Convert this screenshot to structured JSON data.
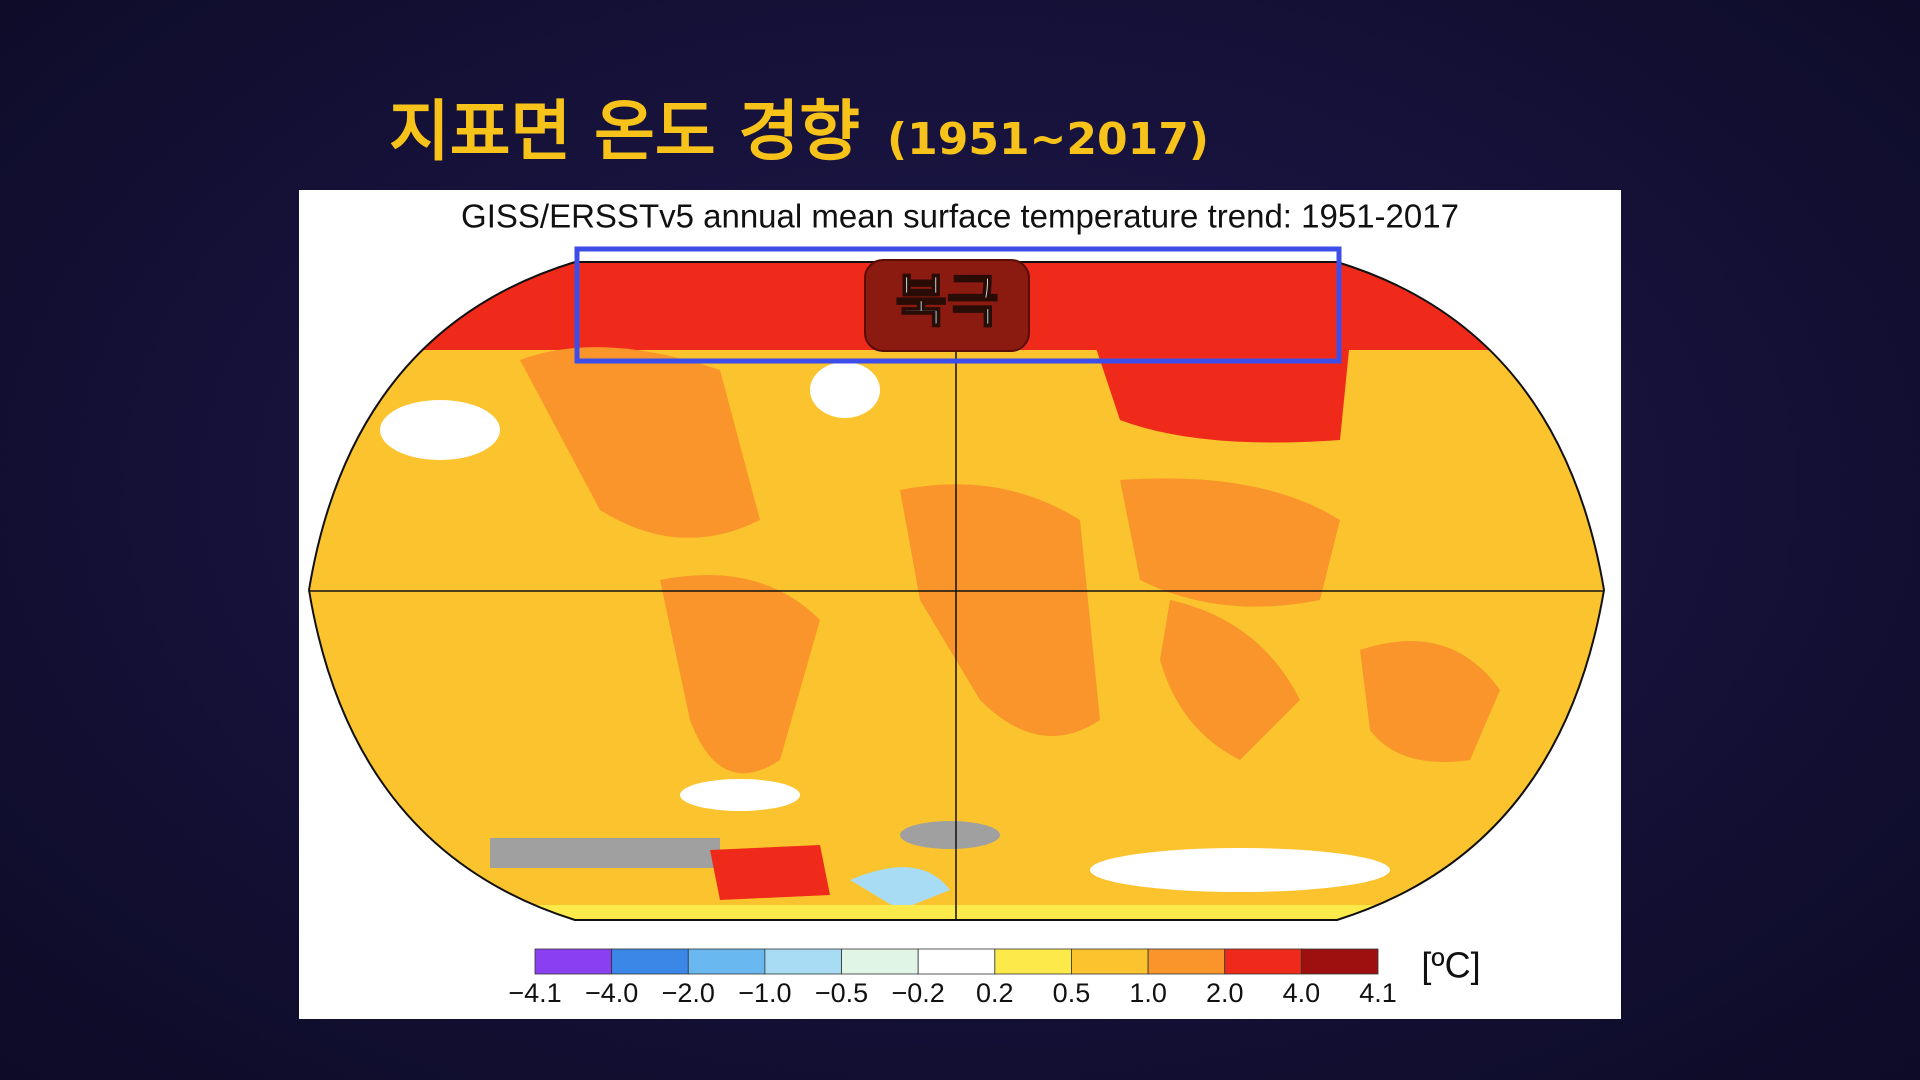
{
  "header": {
    "title": "지표면 온도 경향",
    "subtitle": "(1951~2017)"
  },
  "map": {
    "title": "GISS/ERSSTv5 annual mean surface temperature trend: 1951-2017",
    "highlight_label": "북극"
  },
  "legend": {
    "unit": "[ºC]",
    "ticks": [
      "−4.1",
      "−4.0",
      "−2.0",
      "−1.0",
      "−0.5",
      "−0.2",
      "0.2",
      "0.5",
      "1.0",
      "2.0",
      "4.0",
      "4.1"
    ],
    "colors": [
      "#8a3ff0",
      "#3a87e8",
      "#6ab8f0",
      "#a8dcf5",
      "#e0f5e6",
      "#ffffff",
      "#fce94a",
      "#fbc42e",
      "#f9952a",
      "#ef2a1a",
      "#9e0f0f"
    ]
  }
}
